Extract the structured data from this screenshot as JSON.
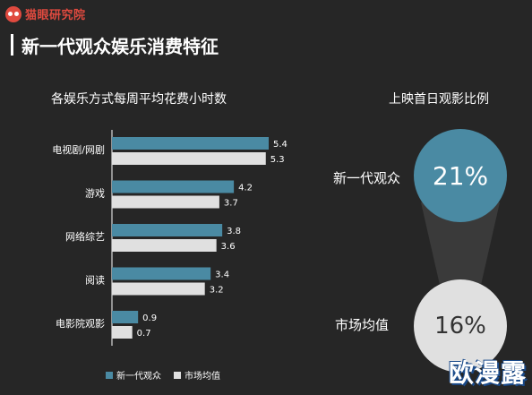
{
  "brand": {
    "name": "猫眼研究院"
  },
  "page_title": "新一代观众娱乐消费特征",
  "chart_data": [
    {
      "type": "bar",
      "orientation": "horizontal",
      "title": "各娱乐方式每周平均花费小时数",
      "categories": [
        "电视剧/网剧",
        "游戏",
        "网络综艺",
        "阅读",
        "电影院观影"
      ],
      "series": [
        {
          "name": "新一代观众",
          "color": "#4a8aa3",
          "values": [
            5.4,
            4.2,
            3.8,
            3.4,
            0.9
          ]
        },
        {
          "name": "市场均值",
          "color": "#e0e0e0",
          "values": [
            5.3,
            3.7,
            3.6,
            3.2,
            0.7
          ]
        }
      ],
      "xlim": [
        0,
        5.4
      ],
      "legend_position": "bottom",
      "grid": false
    },
    {
      "type": "bubble",
      "title": "上映首日观影比例",
      "items": [
        {
          "label": "新一代观众",
          "value": 21,
          "display": "21%",
          "color": "#4a8aa3"
        },
        {
          "label": "市场均值",
          "value": 16,
          "display": "16%",
          "color": "#e0e0e0"
        }
      ]
    }
  ],
  "watermark": "欧漫露"
}
